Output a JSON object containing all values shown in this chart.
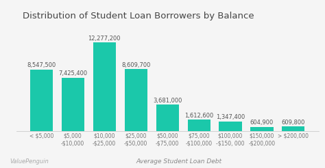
{
  "title": "Distribution of Student Loan Borrowers by Balance",
  "categories": [
    "< $5,000",
    "$5,000\n-$10,000",
    "$10,000\n-$25,000",
    "$25,000\n-$50,000",
    "$50,000\n-$75,000",
    "$75,000\n-$100,000",
    "$100,000\n-$150, 000",
    "$150,000\n-$200,000",
    "> $200,000"
  ],
  "values": [
    8547500,
    7425400,
    12277200,
    8609700,
    3681000,
    1612600,
    1347400,
    604900,
    609800
  ],
  "bar_color": "#1BC8AA",
  "background_color": "#f5f5f5",
  "title_fontsize": 9.5,
  "label_fontsize": 6.0,
  "tick_fontsize": 5.5,
  "xlabel_fontsize": 6.5,
  "xlabel": "Average Student Loan Debt",
  "watermark": "ValuePenguin",
  "value_labels": [
    "8,547,500",
    "7,425,400",
    "12,277,200",
    "8,609,700",
    "3,681,000",
    "1,612,600",
    "1,347,400",
    "604,900",
    "609,800"
  ],
  "ylim": [
    0,
    14000000
  ]
}
